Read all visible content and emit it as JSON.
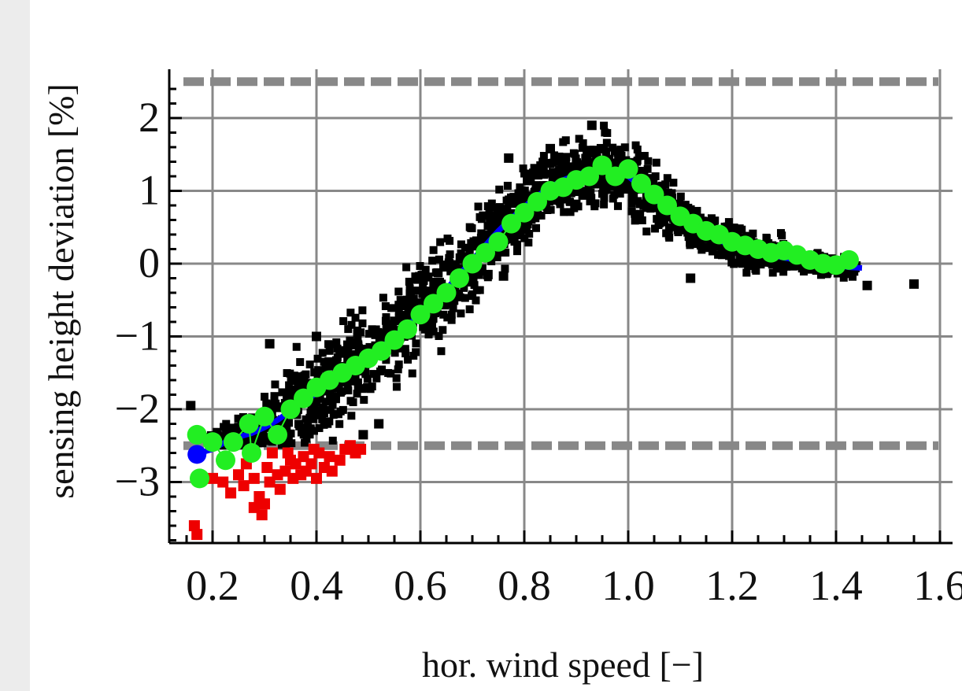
{
  "chart_data": {
    "type": "scatter",
    "title": "",
    "xlabel": "hor. wind speed [−]",
    "ylabel": "sensing height deviation [%]",
    "xlim": [
      0.13,
      1.6
    ],
    "ylim": [
      -3.8,
      2.7
    ],
    "x_ticks": [
      0.2,
      0.4,
      0.6,
      0.8,
      1.0,
      1.2,
      1.4,
      1.6
    ],
    "x_tick_labels": [
      "0.2",
      "0.4",
      "0.6",
      "0.8",
      "1.0",
      "1.2",
      "1.4",
      "1.6"
    ],
    "y_ticks": [
      -3,
      -2,
      -1,
      0,
      1,
      2
    ],
    "y_tick_labels": [
      "−3",
      "−2",
      "−1",
      "0",
      "1",
      "2"
    ],
    "grid": true,
    "reference_lines": [
      {
        "y": 2.5,
        "style": "dashed",
        "color": "#888888"
      },
      {
        "y": -2.5,
        "style": "dashed",
        "color": "#888888"
      }
    ],
    "mean_curve": {
      "color": "#0000ff",
      "x": [
        0.175,
        0.2,
        0.225,
        0.25,
        0.275,
        0.3,
        0.325,
        0.35,
        0.375,
        0.4,
        0.425,
        0.45,
        0.475,
        0.5,
        0.525,
        0.55,
        0.575,
        0.6,
        0.625,
        0.65,
        0.675,
        0.7,
        0.725,
        0.75,
        0.775,
        0.8,
        0.825,
        0.85,
        0.875,
        0.9,
        0.925,
        0.95,
        0.975,
        1.0,
        1.025,
        1.05,
        1.075,
        1.1,
        1.125,
        1.15,
        1.175,
        1.2,
        1.225,
        1.25,
        1.275,
        1.3,
        1.325,
        1.35,
        1.375,
        1.4,
        1.425,
        1.45
      ],
      "y": [
        -2.6,
        -2.55,
        -2.45,
        -2.38,
        -2.33,
        -2.25,
        -2.15,
        -2.02,
        -1.9,
        -1.78,
        -1.65,
        -1.52,
        -1.4,
        -1.28,
        -1.15,
        -1.0,
        -0.85,
        -0.7,
        -0.52,
        -0.35,
        -0.15,
        0.05,
        0.25,
        0.45,
        0.62,
        0.78,
        0.93,
        1.05,
        1.15,
        1.22,
        1.27,
        1.3,
        1.28,
        1.2,
        1.05,
        0.9,
        0.75,
        0.62,
        0.5,
        0.4,
        0.32,
        0.25,
        0.2,
        0.15,
        0.12,
        0.08,
        0.05,
        0.02,
        0.0,
        -0.02,
        -0.05,
        -0.06
      ]
    },
    "bin_means": {
      "color": "#22ee22",
      "points": [
        [
          0.17,
          -2.35
        ],
        [
          0.175,
          -2.95
        ],
        [
          0.2,
          -2.45
        ],
        [
          0.225,
          -2.7
        ],
        [
          0.24,
          -2.45
        ],
        [
          0.27,
          -2.2
        ],
        [
          0.275,
          -2.6
        ],
        [
          0.3,
          -2.1
        ],
        [
          0.325,
          -2.35
        ],
        [
          0.35,
          -2.0
        ],
        [
          0.375,
          -1.85
        ],
        [
          0.4,
          -1.7
        ],
        [
          0.425,
          -1.6
        ],
        [
          0.45,
          -1.5
        ],
        [
          0.475,
          -1.4
        ],
        [
          0.5,
          -1.3
        ],
        [
          0.525,
          -1.2
        ],
        [
          0.55,
          -1.05
        ],
        [
          0.575,
          -0.9
        ],
        [
          0.6,
          -0.7
        ],
        [
          0.625,
          -0.55
        ],
        [
          0.65,
          -0.4
        ],
        [
          0.675,
          -0.2
        ],
        [
          0.7,
          0.0
        ],
        [
          0.725,
          0.15
        ],
        [
          0.75,
          0.3
        ],
        [
          0.775,
          0.55
        ],
        [
          0.8,
          0.7
        ],
        [
          0.825,
          0.85
        ],
        [
          0.85,
          1.0
        ],
        [
          0.875,
          1.05
        ],
        [
          0.9,
          1.15
        ],
        [
          0.925,
          1.2
        ],
        [
          0.95,
          1.35
        ],
        [
          0.975,
          1.2
        ],
        [
          1.0,
          1.3
        ],
        [
          1.025,
          1.1
        ],
        [
          1.05,
          0.95
        ],
        [
          1.075,
          0.8
        ],
        [
          1.1,
          0.65
        ],
        [
          1.125,
          0.55
        ],
        [
          1.15,
          0.45
        ],
        [
          1.175,
          0.4
        ],
        [
          1.2,
          0.3
        ],
        [
          1.225,
          0.25
        ],
        [
          1.25,
          0.2
        ],
        [
          1.275,
          0.15
        ],
        [
          1.3,
          0.18
        ],
        [
          1.325,
          0.12
        ],
        [
          1.35,
          0.05
        ],
        [
          1.375,
          0.0
        ],
        [
          1.4,
          -0.02
        ],
        [
          1.425,
          0.05
        ]
      ]
    },
    "black_outliers": [
      [
        0.158,
        -1.95
      ],
      [
        0.31,
        -1.1
      ],
      [
        0.4,
        -1.0
      ],
      [
        1.12,
        -0.2
      ],
      [
        1.46,
        -0.3
      ],
      [
        1.55,
        -0.28
      ],
      [
        0.85,
        1.58
      ],
      [
        0.93,
        1.9
      ],
      [
        0.77,
        1.45
      ],
      [
        0.73,
        -0.15
      ],
      [
        0.76,
        -0.17
      ],
      [
        0.52,
        -2.2
      ],
      [
        0.49,
        -2.35
      ]
    ],
    "black_cloud_color": "#000000",
    "red_points": {
      "color": "#ee0000",
      "points": [
        [
          0.165,
          -3.6
        ],
        [
          0.17,
          -3.72
        ],
        [
          0.2,
          -2.95
        ],
        [
          0.22,
          -3.0
        ],
        [
          0.235,
          -3.15
        ],
        [
          0.25,
          -2.9
        ],
        [
          0.26,
          -3.05
        ],
        [
          0.265,
          -2.75
        ],
        [
          0.28,
          -2.95
        ],
        [
          0.29,
          -3.2
        ],
        [
          0.295,
          -3.45
        ],
        [
          0.305,
          -2.8
        ],
        [
          0.31,
          -3.0
        ],
        [
          0.315,
          -2.6
        ],
        [
          0.325,
          -2.9
        ],
        [
          0.33,
          -3.1
        ],
        [
          0.34,
          -2.85
        ],
        [
          0.35,
          -2.7
        ],
        [
          0.355,
          -2.95
        ],
        [
          0.36,
          -2.75
        ],
        [
          0.37,
          -2.9
        ],
        [
          0.375,
          -2.65
        ],
        [
          0.38,
          -2.85
        ],
        [
          0.39,
          -2.75
        ],
        [
          0.4,
          -2.95
        ],
        [
          0.405,
          -2.6
        ],
        [
          0.415,
          -2.8
        ],
        [
          0.425,
          -2.65
        ],
        [
          0.43,
          -2.85
        ],
        [
          0.445,
          -2.7
        ],
        [
          0.455,
          -2.55
        ],
        [
          0.465,
          -2.5
        ],
        [
          0.475,
          -2.6
        ],
        [
          0.485,
          -2.55
        ],
        [
          0.3,
          -3.3
        ],
        [
          0.28,
          -3.35
        ],
        [
          0.345,
          -2.6
        ],
        [
          0.395,
          -2.55
        ]
      ]
    }
  }
}
